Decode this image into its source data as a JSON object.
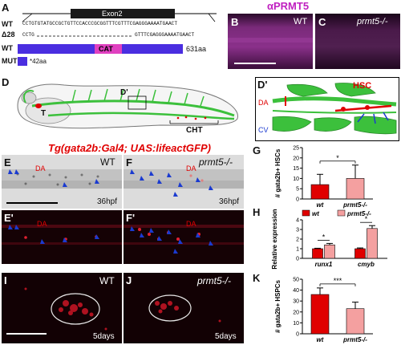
{
  "panels": {
    "A": "A",
    "B": "B",
    "C": "C",
    "D": "D",
    "Dp": "D'",
    "E": "E",
    "F": "F",
    "Ep": "E'",
    "Fp": "F'",
    "G": "G",
    "H": "H",
    "I": "I",
    "J": "J",
    "K": "K"
  },
  "panelA": {
    "exon_label": "Exon2",
    "wt_label": "WT",
    "wt_seq": "CCTGTGTATGCCGCTGTTCCACCCGCGGTTTCGTTTCGAGGGAAAATGAACT",
    "d28_label": "Δ28",
    "d28_seq_left": "CCTG",
    "d28_seq_right": "GTTTCGAGGGAAAATGAACT",
    "wt_bar_label": "WT",
    "cat_label": "CAT",
    "wt_aa": "631aa",
    "mut_label": "MUT",
    "mut_aa": "*42aa",
    "colors": {
      "bar": "#4a2ee0",
      "cat": "#e040c0"
    }
  },
  "panelBC": {
    "antibody": "αPRMT5",
    "B_genotype": "WT",
    "C_genotype": "prmt5-/-"
  },
  "panelD": {
    "T": "T",
    "Dprime": "D'",
    "CHT": "CHT",
    "HSC": "HSC",
    "DA": "DA",
    "CV": "CV"
  },
  "transgene_title": "Tg(gata2b:Gal4; UAS:lifeactGFP)",
  "panelEF": {
    "E_genotype": "WT",
    "F_genotype": "prmt5-/-",
    "DA": "DA",
    "E_time": "36hpf",
    "F_time": "36hpf"
  },
  "panelIJ": {
    "I_genotype": "WT",
    "J_genotype": "prmt5-/-",
    "I_time": "5days",
    "J_time": "5days"
  },
  "chart_data": [
    {
      "id": "G",
      "type": "bar",
      "categories": [
        "wt",
        "prmt5-/-"
      ],
      "values": [
        7,
        10
      ],
      "errors": [
        5,
        6.5
      ],
      "ylabel": "# gata2b+ HSCs",
      "ylim": [
        0,
        25
      ],
      "yticks": [
        "0",
        "5",
        "10",
        "15",
        "20",
        "25"
      ],
      "significance": "*",
      "colors": [
        "#e00000",
        "#f4a0a0"
      ]
    },
    {
      "id": "H",
      "type": "bar",
      "categories": [
        "runx1",
        "cmyb"
      ],
      "series": [
        {
          "name": "wt",
          "values": [
            1,
            1
          ],
          "errors": [
            0.05,
            0.08
          ]
        },
        {
          "name": "prmt5-/-",
          "values": [
            1.4,
            3.1
          ],
          "errors": [
            0.15,
            0.3
          ]
        }
      ],
      "ylabel": "Relative expression",
      "ylim": [
        0,
        4
      ],
      "yticks": [
        "0",
        "1",
        "2",
        "3",
        "4"
      ],
      "significance": [
        "*",
        "*"
      ],
      "legend": "top",
      "colors": [
        "#e00000",
        "#f4a0a0"
      ]
    },
    {
      "id": "K",
      "type": "bar",
      "categories": [
        "wt",
        "prmt5-/-"
      ],
      "values": [
        36,
        23
      ],
      "errors": [
        6,
        6
      ],
      "ylabel": "# gata2b+ HSPCs",
      "ylim": [
        0,
        50
      ],
      "yticks": [
        "0",
        "10",
        "20",
        "30",
        "40",
        "50"
      ],
      "significance": "***",
      "colors": [
        "#e00000",
        "#f4a0a0"
      ]
    }
  ]
}
